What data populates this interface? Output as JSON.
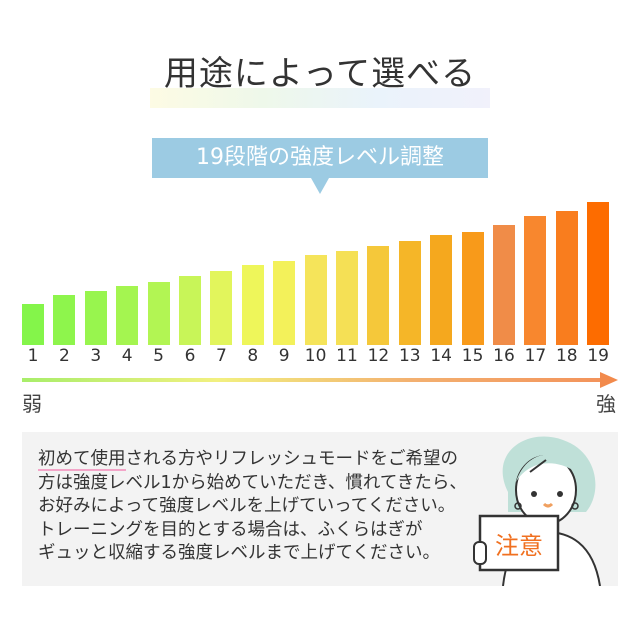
{
  "title": "用途によって選べる",
  "banner": "19段階の強度レベル調整",
  "levels": [
    "1",
    "2",
    "3",
    "4",
    "5",
    "6",
    "7",
    "8",
    "9",
    "10",
    "11",
    "12",
    "13",
    "14",
    "15",
    "16",
    "17",
    "18",
    "19"
  ],
  "level_relative_heights": [
    29,
    35,
    38,
    41,
    44,
    48,
    52,
    56,
    59,
    63,
    66,
    69,
    73,
    77,
    79,
    84,
    90,
    94,
    100
  ],
  "bar_colors": [
    "#84f54a",
    "#8ef54c",
    "#98f54e",
    "#a4f550",
    "#b2f553",
    "#c8f558",
    "#e2f55c",
    "#eef65a",
    "#f3f15a",
    "#f5e45a",
    "#f5e055",
    "#f5c83a",
    "#f5b628",
    "#f5a81e",
    "#f89a1a",
    "#f08c48",
    "#f8872e",
    "#f97d1e",
    "#fd6c00"
  ],
  "scale": {
    "weak": "弱",
    "strong": "強"
  },
  "note": {
    "line1_underlined": "初めて使用",
    "line1_rest": "される方やリフレッシュモードをご希望の",
    "line2": "方は強度レベル1から始めていただき、慣れてきたら、",
    "line3": "お好みによって強度レベルを上げていってください。",
    "line4": "トレーニングを目的とする場合は、ふくらはぎが",
    "line5": "ギュッと収縮する強度レベルまで上げてください。",
    "sign": "注意"
  }
}
